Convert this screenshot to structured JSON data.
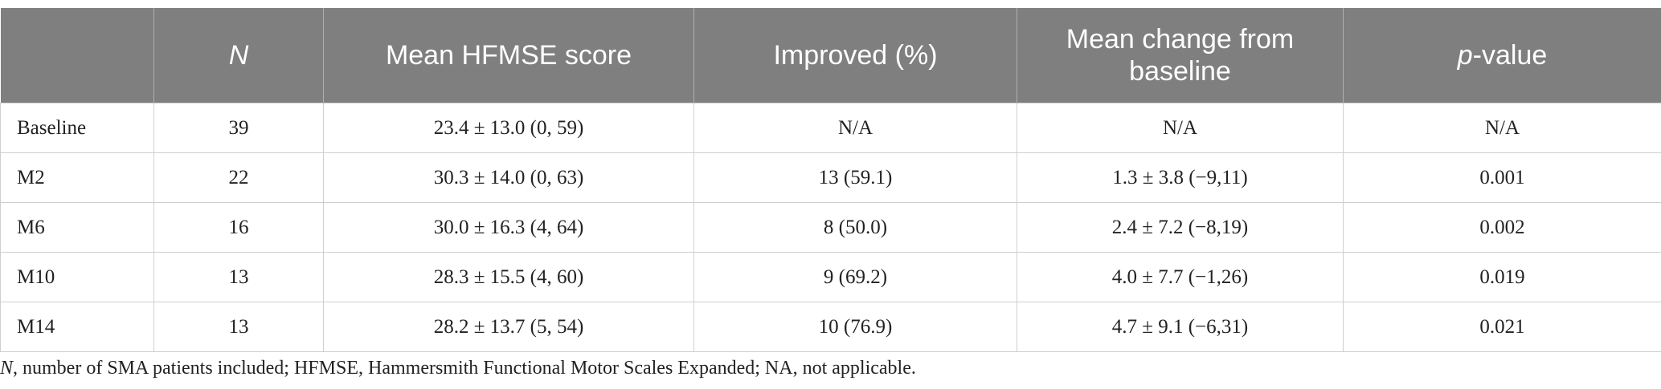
{
  "table": {
    "header": [
      "N",
      "Mean HFMSE score",
      "Improved (%)",
      "Mean change from baseline",
      {
        "italic": "p",
        "rest": "-value"
      }
    ],
    "rows": [
      [
        "Baseline",
        "39",
        "23.4 ± 13.0 (0, 59)",
        "N/A",
        "N/A",
        "N/A"
      ],
      [
        "M2",
        "22",
        "30.3 ± 14.0 (0, 63)",
        "13 (59.1)",
        "1.3 ± 3.8 (−9,11)",
        "0.001"
      ],
      [
        "M6",
        "16",
        "30.0 ± 16.3 (4, 64)",
        "8 (50.0)",
        "2.4 ± 7.2 (−8,19)",
        "0.002"
      ],
      [
        "M10",
        "13",
        "28.3 ± 15.5 (4, 60)",
        "9 (69.2)",
        "4.0 ± 7.7 (−1,26)",
        "0.019"
      ],
      [
        "M14",
        "13",
        "28.2 ± 13.7 (5, 54)",
        "10 (76.9)",
        "4.7 ± 9.1 (−6,31)",
        "0.021"
      ]
    ]
  },
  "footnote": {
    "italic": "N",
    "rest": ", number of SMA patients included; HFMSE, Hammersmith Functional Motor Scales Expanded; NA, not applicable."
  }
}
